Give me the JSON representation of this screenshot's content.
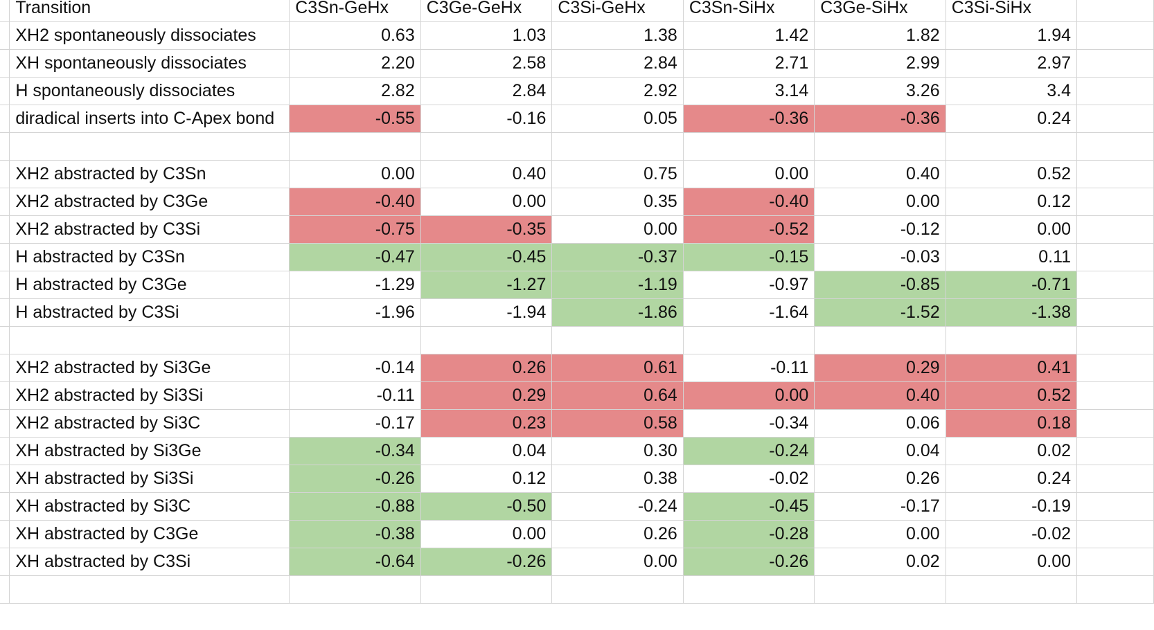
{
  "sheet": {
    "header": {
      "transition": "Transition",
      "cols": [
        "C3Sn-GeHx",
        "C3Ge-GeHx",
        "C3Si-GeHx",
        "C3Sn-SiHx",
        "C3Ge-SiHx",
        "C3Si-SiHx"
      ]
    },
    "rows": [
      {
        "label": "XH2 spontaneously dissociates",
        "values": [
          "0.63",
          "1.03",
          "1.38",
          "1.42",
          "1.82",
          "1.94"
        ],
        "hl": [
          "",
          "",
          "",
          "",
          "",
          ""
        ]
      },
      {
        "label": "XH spontaneously dissociates",
        "values": [
          "2.20",
          "2.58",
          "2.84",
          "2.71",
          "2.99",
          "2.97"
        ],
        "hl": [
          "",
          "",
          "",
          "",
          "",
          ""
        ]
      },
      {
        "label": "H spontaneously dissociates",
        "values": [
          "2.82",
          "2.84",
          "2.92",
          "3.14",
          "3.26",
          "3.4"
        ],
        "hl": [
          "",
          "",
          "",
          "",
          "",
          ""
        ]
      },
      {
        "label": "diradical inserts into C-Apex bond",
        "values": [
          "-0.55",
          "-0.16",
          "0.05",
          "-0.36",
          "-0.36",
          "0.24"
        ],
        "hl": [
          "red",
          "",
          "",
          "red",
          "red",
          ""
        ]
      },
      {
        "label": "",
        "values": [
          "",
          "",
          "",
          "",
          "",
          ""
        ],
        "hl": [
          "",
          "",
          "",
          "",
          "",
          ""
        ]
      },
      {
        "label": "XH2 abstracted by C3Sn",
        "values": [
          "0.00",
          "0.40",
          "0.75",
          "0.00",
          "0.40",
          "0.52"
        ],
        "hl": [
          "",
          "",
          "",
          "",
          "",
          ""
        ]
      },
      {
        "label": "XH2 abstracted by C3Ge",
        "values": [
          "-0.40",
          "0.00",
          "0.35",
          "-0.40",
          "0.00",
          "0.12"
        ],
        "hl": [
          "red",
          "",
          "",
          "red",
          "",
          ""
        ]
      },
      {
        "label": "XH2 abstracted by C3Si",
        "values": [
          "-0.75",
          "-0.35",
          "0.00",
          "-0.52",
          "-0.12",
          "0.00"
        ],
        "hl": [
          "red",
          "red",
          "",
          "red",
          "",
          ""
        ]
      },
      {
        "label": "H abstracted by C3Sn",
        "values": [
          "-0.47",
          "-0.45",
          "-0.37",
          "-0.15",
          "-0.03",
          "0.11"
        ],
        "hl": [
          "green",
          "green",
          "green",
          "green",
          "",
          ""
        ]
      },
      {
        "label": "H abstracted by C3Ge",
        "values": [
          "-1.29",
          "-1.27",
          "-1.19",
          "-0.97",
          "-0.85",
          "-0.71"
        ],
        "hl": [
          "",
          "green",
          "green",
          "",
          "green",
          "green"
        ]
      },
      {
        "label": "H abstracted by C3Si",
        "values": [
          "-1.96",
          "-1.94",
          "-1.86",
          "-1.64",
          "-1.52",
          "-1.38"
        ],
        "hl": [
          "",
          "",
          "green",
          "",
          "green",
          "green"
        ]
      },
      {
        "label": "",
        "values": [
          "",
          "",
          "",
          "",
          "",
          ""
        ],
        "hl": [
          "",
          "",
          "",
          "",
          "",
          ""
        ]
      },
      {
        "label": "XH2 abstracted by Si3Ge",
        "values": [
          "-0.14",
          "0.26",
          "0.61",
          "-0.11",
          "0.29",
          "0.41"
        ],
        "hl": [
          "",
          "red",
          "red",
          "",
          "red",
          "red"
        ]
      },
      {
        "label": "XH2 abstracted by Si3Si",
        "values": [
          "-0.11",
          "0.29",
          "0.64",
          "0.00",
          "0.40",
          "0.52"
        ],
        "hl": [
          "",
          "red",
          "red",
          "red",
          "red",
          "red"
        ]
      },
      {
        "label": "XH2 abstracted by Si3C",
        "values": [
          "-0.17",
          "0.23",
          "0.58",
          "-0.34",
          "0.06",
          "0.18"
        ],
        "hl": [
          "",
          "red",
          "red",
          "",
          "",
          "red"
        ]
      },
      {
        "label": "XH abstracted by Si3Ge",
        "values": [
          "-0.34",
          "0.04",
          "0.30",
          "-0.24",
          "0.04",
          "0.02"
        ],
        "hl": [
          "green",
          "",
          "",
          "green",
          "",
          ""
        ]
      },
      {
        "label": "XH abstracted by Si3Si",
        "values": [
          "-0.26",
          "0.12",
          "0.38",
          "-0.02",
          "0.26",
          "0.24"
        ],
        "hl": [
          "green",
          "",
          "",
          "",
          "",
          ""
        ]
      },
      {
        "label": "XH abstracted by Si3C",
        "values": [
          "-0.88",
          "-0.50",
          "-0.24",
          "-0.45",
          "-0.17",
          "-0.19"
        ],
        "hl": [
          "green",
          "green",
          "",
          "green",
          "",
          ""
        ]
      },
      {
        "label": "XH abstracted by C3Ge",
        "values": [
          "-0.38",
          "0.00",
          "0.26",
          "-0.28",
          "0.00",
          "-0.02"
        ],
        "hl": [
          "green",
          "",
          "",
          "green",
          "",
          ""
        ]
      },
      {
        "label": "XH abstracted by C3Si",
        "values": [
          "-0.64",
          "-0.26",
          "0.00",
          "-0.26",
          "0.02",
          "0.00"
        ],
        "hl": [
          "green",
          "green",
          "",
          "green",
          "",
          ""
        ]
      },
      {
        "label": "",
        "values": [
          "",
          "",
          "",
          "",
          "",
          ""
        ],
        "hl": [
          "",
          "",
          "",
          "",
          "",
          ""
        ]
      }
    ],
    "colors": {
      "red_highlight": "#e5898a",
      "green_highlight": "#b1d6a2",
      "gridline": "#d4d4d4"
    }
  }
}
